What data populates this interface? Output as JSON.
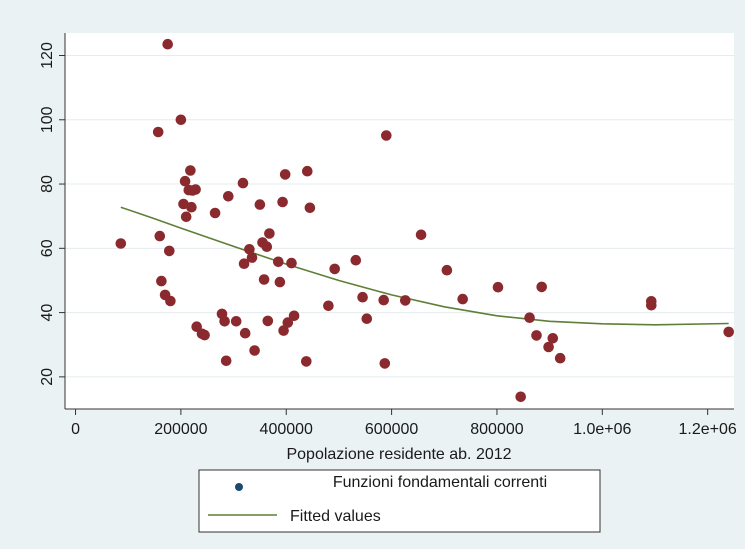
{
  "chart_data": {
    "type": "scatter",
    "xlabel": "Popolazione residente ab. 2012",
    "ylabel": "",
    "xlim": [
      -20000,
      1250000
    ],
    "ylim": [
      10,
      127
    ],
    "x_ticks": [
      {
        "value": 0,
        "label": "0"
      },
      {
        "value": 200000,
        "label": "200000"
      },
      {
        "value": 400000,
        "label": "400000"
      },
      {
        "value": 600000,
        "label": "600000"
      },
      {
        "value": 800000,
        "label": "800000"
      },
      {
        "value": 1000000,
        "label": "1.0e+06"
      },
      {
        "value": 1200000,
        "label": "1.2e+06"
      }
    ],
    "y_ticks": [
      {
        "value": 20,
        "label": "20"
      },
      {
        "value": 40,
        "label": "40"
      },
      {
        "value": 60,
        "label": "60"
      },
      {
        "value": 80,
        "label": "80"
      },
      {
        "value": 100,
        "label": "100"
      },
      {
        "value": 120,
        "label": "120"
      }
    ],
    "grid": "horizontal",
    "legend_position": "bottom",
    "colors": {
      "outer_background": "#eaf2f3",
      "plot_background": "#ffffff",
      "points": "#8b2a2e",
      "fit_line": "#5f7f36",
      "legend_marker": "#1c4a6e",
      "grid": "#e4ecee"
    },
    "series": [
      {
        "name": "Funzioni fondamentali correnti",
        "kind": "scatter",
        "points": [
          [
            86000,
            61.5
          ],
          [
            157000,
            96.2
          ],
          [
            160000,
            63.8
          ],
          [
            163000,
            49.8
          ],
          [
            170000,
            45.5
          ],
          [
            175000,
            123.5
          ],
          [
            178000,
            59.2
          ],
          [
            180000,
            43.6
          ],
          [
            200000,
            100.0
          ],
          [
            205000,
            73.8
          ],
          [
            208000,
            80.9
          ],
          [
            210000,
            69.8
          ],
          [
            215000,
            78.1
          ],
          [
            218000,
            84.2
          ],
          [
            220000,
            72.8
          ],
          [
            222000,
            78.0
          ],
          [
            228000,
            78.3
          ],
          [
            230000,
            35.6
          ],
          [
            240000,
            33.4
          ],
          [
            245000,
            33.0
          ],
          [
            265000,
            71.0
          ],
          [
            278000,
            39.6
          ],
          [
            283000,
            37.3
          ],
          [
            286000,
            25.0
          ],
          [
            290000,
            76.2
          ],
          [
            305000,
            37.3
          ],
          [
            318000,
            80.3
          ],
          [
            320000,
            55.2
          ],
          [
            322000,
            33.6
          ],
          [
            330000,
            59.7
          ],
          [
            335000,
            57.1
          ],
          [
            340000,
            28.2
          ],
          [
            350000,
            73.6
          ],
          [
            355000,
            61.8
          ],
          [
            358000,
            50.3
          ],
          [
            363000,
            60.5
          ],
          [
            365000,
            37.4
          ],
          [
            368000,
            64.6
          ],
          [
            385000,
            55.8
          ],
          [
            388000,
            49.5
          ],
          [
            393000,
            74.4
          ],
          [
            395000,
            34.4
          ],
          [
            398000,
            83.0
          ],
          [
            403000,
            36.9
          ],
          [
            410000,
            55.4
          ],
          [
            415000,
            39.0
          ],
          [
            438000,
            24.8
          ],
          [
            440000,
            84.0
          ],
          [
            445000,
            72.6
          ],
          [
            480000,
            42.1
          ],
          [
            492000,
            53.6
          ],
          [
            532000,
            56.3
          ],
          [
            545000,
            44.8
          ],
          [
            553000,
            38.1
          ],
          [
            585000,
            43.9
          ],
          [
            587000,
            24.2
          ],
          [
            590000,
            95.1
          ],
          [
            626000,
            43.8
          ],
          [
            656000,
            64.2
          ],
          [
            705000,
            53.2
          ],
          [
            735000,
            44.2
          ],
          [
            802000,
            47.9
          ],
          [
            845000,
            13.8
          ],
          [
            862000,
            38.4
          ],
          [
            875000,
            32.9
          ],
          [
            885000,
            48.0
          ],
          [
            898000,
            29.3
          ],
          [
            906000,
            32.0
          ],
          [
            920000,
            25.8
          ],
          [
            1093000,
            43.5
          ],
          [
            1093000,
            42.3
          ],
          [
            1240000,
            34.0
          ]
        ]
      },
      {
        "name": "Fitted values",
        "kind": "line",
        "points": [
          [
            86000,
            72.8
          ],
          [
            150000,
            69.2
          ],
          [
            200000,
            66.3
          ],
          [
            300000,
            60.6
          ],
          [
            400000,
            55.1
          ],
          [
            500000,
            50.0
          ],
          [
            600000,
            45.5
          ],
          [
            700000,
            41.8
          ],
          [
            800000,
            39.0
          ],
          [
            900000,
            37.3
          ],
          [
            1000000,
            36.5
          ],
          [
            1100000,
            36.2
          ],
          [
            1240000,
            36.6
          ]
        ]
      }
    ]
  }
}
